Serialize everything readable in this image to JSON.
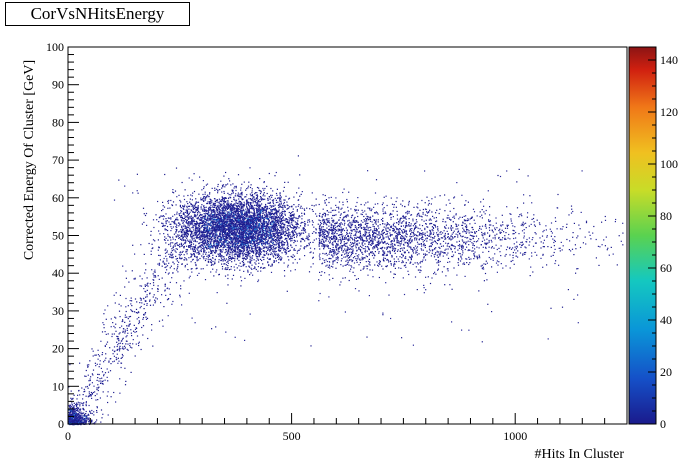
{
  "chart_data": {
    "type": "heatmap",
    "title": "CorVsNHitsEnergy",
    "xlabel": "#Hits In Cluster",
    "ylabel": "Corrected Energy Of Cluster [GeV]",
    "xlim": [
      0,
      1250
    ],
    "ylim": [
      0,
      100
    ],
    "x_ticks": [
      "0",
      "500",
      "1000"
    ],
    "x_tick_values": [
      0,
      500,
      1000
    ],
    "y_ticks": [
      "0",
      "10",
      "20",
      "30",
      "40",
      "50",
      "60",
      "70",
      "80",
      "90",
      "100"
    ],
    "y_tick_values": [
      0,
      10,
      20,
      30,
      40,
      50,
      60,
      70,
      80,
      90,
      100
    ],
    "colorbar": {
      "range": [
        0,
        145
      ],
      "ticks": [
        "0",
        "20",
        "40",
        "60",
        "80",
        "100",
        "120",
        "140"
      ],
      "tick_values": [
        0,
        20,
        40,
        60,
        80,
        100,
        120,
        140
      ]
    },
    "density_regions": [
      {
        "region": "low-hits core",
        "x_range": [
          0,
          60
        ],
        "y_range": [
          0,
          8
        ],
        "density": "high"
      },
      {
        "region": "rising band",
        "x_range": [
          60,
          300
        ],
        "y_range": [
          8,
          58
        ],
        "density": "medium"
      },
      {
        "region": "main cluster",
        "x_range": [
          220,
          600
        ],
        "y_range": [
          42,
          62
        ],
        "peak_x": 380,
        "peak_y": 52,
        "density": "high"
      },
      {
        "region": "tail",
        "x_range": [
          600,
          1200
        ],
        "y_range": [
          40,
          60
        ],
        "density": "low"
      }
    ],
    "grid": false,
    "colormap": "rainbow (dark blue to dark red)"
  }
}
